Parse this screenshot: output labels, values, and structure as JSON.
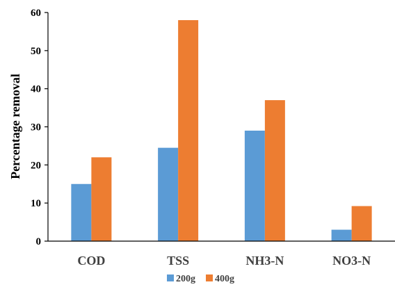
{
  "chart_data": {
    "type": "bar",
    "categories": [
      "COD",
      "TSS",
      "NH3-N",
      "NO3-N"
    ],
    "series": [
      {
        "name": "200g",
        "color": "#5B9BD5",
        "values": [
          15,
          24.5,
          29,
          3
        ]
      },
      {
        "name": "400g",
        "color": "#ED7D31",
        "values": [
          22,
          58,
          37,
          9.2
        ]
      }
    ],
    "ylabel": "Percentage removal",
    "xlabel": "",
    "ylim": [
      0,
      60
    ],
    "yticks": [
      0,
      10,
      20,
      30,
      40,
      50,
      60
    ],
    "grid": false,
    "legend_position": "bottom"
  }
}
